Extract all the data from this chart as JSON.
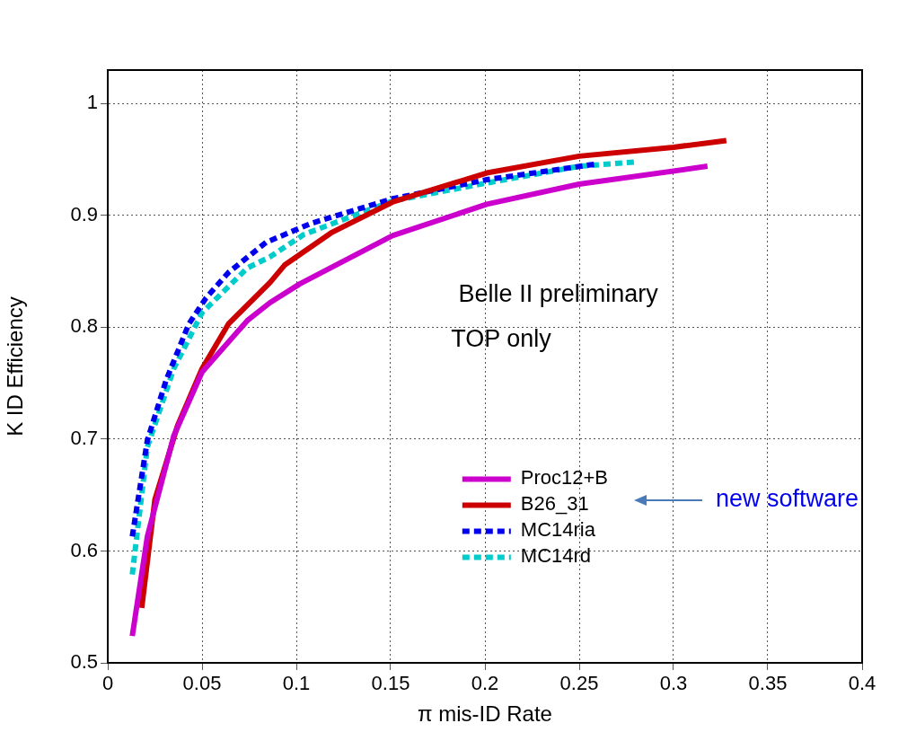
{
  "chart_data": {
    "type": "line",
    "xlabel": "π mis-ID Rate",
    "ylabel": "K ID Efficiency",
    "xlim": [
      0,
      0.4
    ],
    "xticks": [
      0,
      0.05,
      0.1,
      0.15,
      0.2,
      0.25,
      0.3,
      0.35,
      0.4
    ],
    "ylim": [
      0.5,
      1.03
    ],
    "yticks": [
      0.5,
      0.6,
      0.7,
      0.8,
      0.9,
      1
    ],
    "grid": true,
    "legend": "bottom right",
    "marker": "none",
    "annotations": [
      "Belle II preliminary",
      "TOP only",
      "new software"
    ],
    "series": [
      {
        "name": "Proc12+B",
        "color": "#cc00cc",
        "line_style": "solid",
        "x": [
          0.013,
          0.021,
          0.035,
          0.05,
          0.074,
          0.086,
          0.102,
          0.151,
          0.201,
          0.25,
          0.318
        ],
        "values": [
          0.524,
          0.613,
          0.703,
          0.76,
          0.806,
          0.822,
          0.839,
          0.882,
          0.91,
          0.928,
          0.944
        ]
      },
      {
        "name": "B26_31",
        "color": "#cc0000",
        "line_style": "solid",
        "x": [
          0.018,
          0.025,
          0.037,
          0.05,
          0.064,
          0.086,
          0.094,
          0.119,
          0.151,
          0.201,
          0.25,
          0.3,
          0.328
        ],
        "values": [
          0.549,
          0.646,
          0.712,
          0.763,
          0.803,
          0.84,
          0.856,
          0.885,
          0.912,
          0.938,
          0.953,
          0.961,
          0.967
        ]
      },
      {
        "name": "MC14ria",
        "color": "#0000ee",
        "line_style": "dashed",
        "x": [
          0.013,
          0.021,
          0.031,
          0.043,
          0.052,
          0.064,
          0.084,
          0.108,
          0.151,
          0.201,
          0.259
        ],
        "values": [
          0.613,
          0.699,
          0.753,
          0.803,
          0.826,
          0.849,
          0.876,
          0.893,
          0.915,
          0.932,
          0.946
        ]
      },
      {
        "name": "MC14rd",
        "color": "#00cccc",
        "line_style": "dashed",
        "x": [
          0.013,
          0.021,
          0.035,
          0.05,
          0.074,
          0.086,
          0.104,
          0.151,
          0.201,
          0.25,
          0.281
        ],
        "values": [
          0.579,
          0.693,
          0.763,
          0.813,
          0.853,
          0.863,
          0.883,
          0.913,
          0.929,
          0.944,
          0.948
        ]
      }
    ]
  }
}
